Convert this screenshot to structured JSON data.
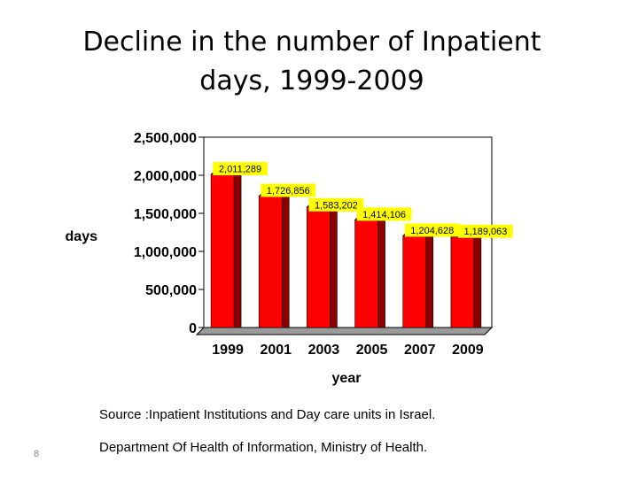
{
  "slide": {
    "title_line1": "Decline in the number of Inpatient",
    "title_line2": "days, 1999-2009",
    "source_line1": "Source :Inpatient Institutions and Day care units in Israel.",
    "source_line2": "Department Of Health of Information, Ministry of Health.",
    "page_number": "8"
  },
  "chart_data": {
    "type": "bar",
    "title": "",
    "xlabel": "year",
    "ylabel": "days",
    "categories": [
      "1999",
      "2001",
      "2003",
      "2005",
      "2007",
      "2009"
    ],
    "values": [
      2011289,
      1726856,
      1583202,
      1414106,
      1204628,
      1189063
    ],
    "data_labels": [
      "2,011,289",
      "1,726,856",
      "1,583,202",
      "1,414,106",
      "1,204,628",
      "1,189,063"
    ],
    "ylim": [
      0,
      2500000
    ],
    "yticks": [
      0,
      500000,
      1000000,
      1500000,
      2000000,
      2500000
    ],
    "ytick_labels": [
      "0",
      "500,000",
      "1,000,000",
      "1,500,000",
      "2,000,000",
      "2,500,000"
    ],
    "grid": false,
    "legend": "none",
    "colors": {
      "bar_front": "#ff0000",
      "bar_side": "#8b0000",
      "bar_top": "#cc0000",
      "floor": "#9a9a9a",
      "data_label_bg": "#ffff00"
    }
  }
}
